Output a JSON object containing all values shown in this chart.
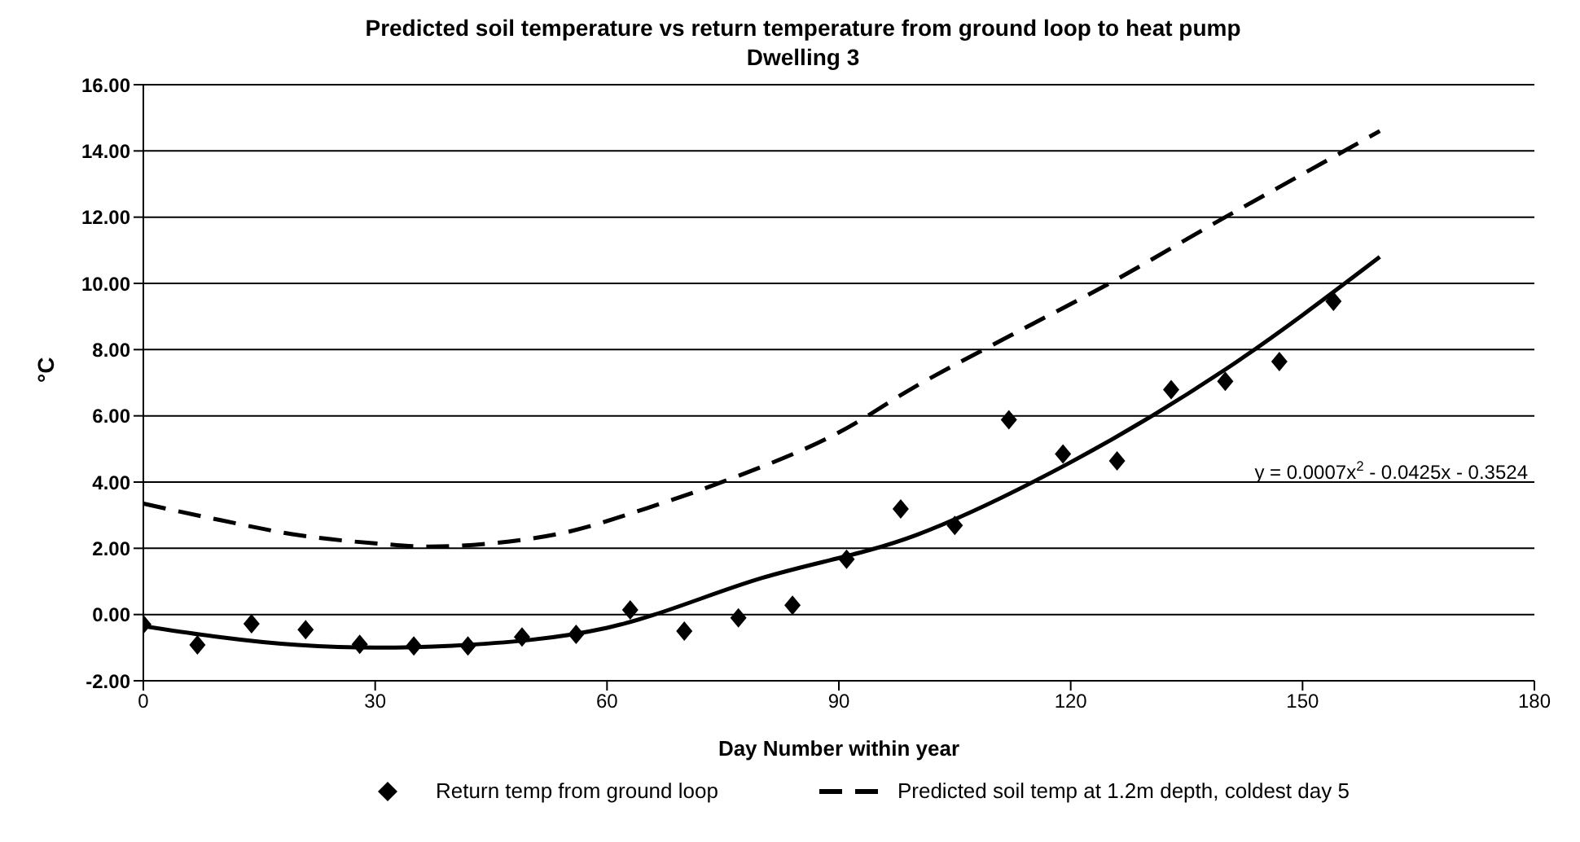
{
  "chart_data": {
    "type": "scatter",
    "title": "Predicted soil temperature vs return temperature from ground loop to heat pump",
    "subtitle": "Dwelling 3",
    "xlabel": "Day Number within year",
    "ylabel": "°C",
    "xlim": [
      0,
      180
    ],
    "xticks": [
      0,
      30,
      60,
      90,
      120,
      150,
      180
    ],
    "ylim": [
      -2,
      16
    ],
    "yticks": [
      {
        "value": -2,
        "label": "-2.00"
      },
      {
        "value": 0,
        "label": "0.00"
      },
      {
        "value": 2,
        "label": "2.00"
      },
      {
        "value": 4,
        "label": "4.00"
      },
      {
        "value": 6,
        "label": "6.00"
      },
      {
        "value": 8,
        "label": "8.00"
      },
      {
        "value": 10,
        "label": "10.00"
      },
      {
        "value": 12,
        "label": "12.00"
      },
      {
        "value": 14,
        "label": "14.00"
      },
      {
        "value": 16,
        "label": "16.00"
      }
    ],
    "grid": "y",
    "legend": "bottom",
    "annotations": [
      "y = 0.0007x$^{2}$ - 0.0425x - 0.3524"
    ],
    "series": [
      {
        "name": "Return temp from ground loop",
        "marker": "diamond",
        "color": "#000000",
        "x": [
          0,
          7,
          14,
          21,
          28,
          35,
          42,
          49,
          56,
          63,
          70,
          77,
          84,
          91,
          98,
          105,
          112,
          119,
          126,
          133,
          140,
          147,
          154
        ],
        "values": [
          -0.3,
          -0.92,
          -0.28,
          -0.46,
          -0.9,
          -0.95,
          -0.95,
          -0.68,
          -0.6,
          0.14,
          -0.5,
          -0.1,
          0.28,
          1.67,
          3.19,
          2.69,
          5.88,
          4.85,
          4.64,
          6.79,
          7.04,
          7.64,
          9.46
        ]
      },
      {
        "type": "line",
        "line_style": "solid",
        "marker": "none",
        "color": "#000000",
        "x": [
          0,
          20,
          30,
          40,
          60,
          80,
          100,
          120,
          140,
          160
        ],
        "values": [
          -0.35,
          -0.92,
          -1.0,
          -0.94,
          -0.4,
          1.1,
          2.4,
          4.6,
          7.4,
          10.8
        ]
      },
      {
        "name": "Predicted soil temp at 1.2m depth, coldest day 5",
        "type": "line",
        "line_style": "dashed",
        "marker": "none",
        "color": "#000000",
        "x": [
          0,
          10,
          20,
          30,
          37,
          45,
          55,
          65,
          76,
          90,
          100,
          112,
          125,
          140,
          150,
          160
        ],
        "values": [
          3.35,
          2.85,
          2.4,
          2.15,
          2.05,
          2.15,
          2.5,
          3.2,
          4.1,
          5.5,
          6.9,
          8.4,
          10.0,
          12.0,
          13.3,
          14.6
        ]
      }
    ]
  }
}
